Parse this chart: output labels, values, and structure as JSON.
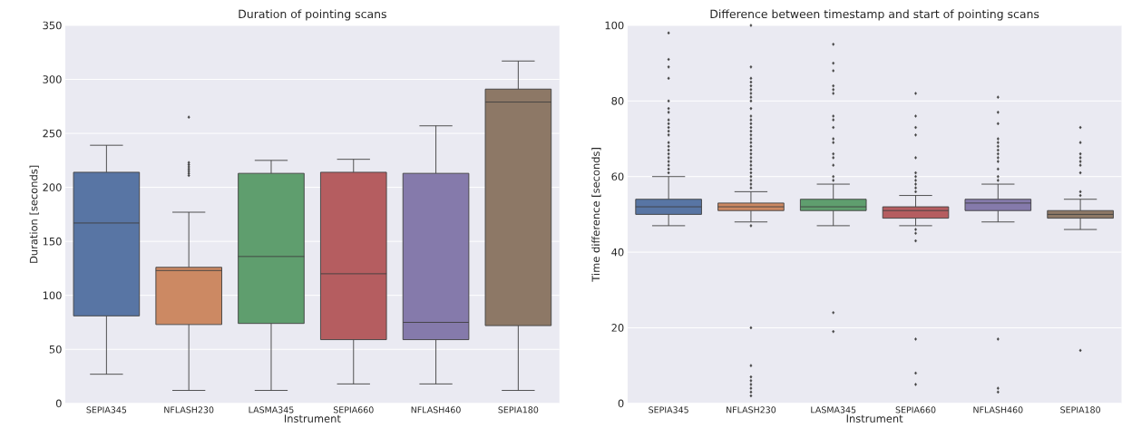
{
  "chart_data": [
    {
      "type": "box",
      "title": "Duration of pointing scans",
      "xlabel": "Instrument",
      "ylabel": "Duration [seconds]",
      "categories": [
        "SEPIA345",
        "NFLASH230",
        "LASMA345",
        "SEPIA660",
        "NFLASH460",
        "SEPIA180"
      ],
      "colors": [
        "#5875a4",
        "#cc8963",
        "#5f9e6e",
        "#b55d60",
        "#857aab",
        "#8d7866"
      ],
      "ylim": [
        0,
        350
      ],
      "yticks": [
        0,
        50,
        100,
        150,
        200,
        250,
        300,
        350
      ],
      "grid": "y",
      "boxes": [
        {
          "low": 27,
          "q1": 81,
          "median": 167,
          "q3": 214,
          "high": 239
        },
        {
          "low": 12,
          "q1": 73,
          "median": 123,
          "q3": 126,
          "high": 177,
          "outliers": [
            211,
            213,
            215,
            217,
            219,
            221,
            223,
            265
          ]
        },
        {
          "low": 12,
          "q1": 74,
          "median": 136,
          "q3": 213,
          "high": 225
        },
        {
          "low": 18,
          "q1": 59,
          "median": 120,
          "q3": 214,
          "high": 226
        },
        {
          "low": 18,
          "q1": 59,
          "median": 75,
          "q3": 213,
          "high": 257
        },
        {
          "low": 12,
          "q1": 72,
          "median": 279,
          "q3": 291,
          "high": 317
        }
      ]
    },
    {
      "type": "box",
      "title": "Difference between timestamp and start of pointing scans",
      "xlabel": "Instrument",
      "ylabel": "Time difference [seconds]",
      "categories": [
        "SEPIA345",
        "NFLASH230",
        "LASMA345",
        "SEPIA660",
        "NFLASH460",
        "SEPIA180"
      ],
      "colors": [
        "#5875a4",
        "#cc8963",
        "#5f9e6e",
        "#b55d60",
        "#857aab",
        "#8d7866"
      ],
      "ylim": [
        0,
        100
      ],
      "yticks": [
        0,
        20,
        40,
        60,
        80,
        100
      ],
      "grid": "y",
      "boxes": [
        {
          "low": 47,
          "q1": 50,
          "median": 52,
          "q3": 54,
          "high": 60,
          "outliers": [
            98,
            91,
            89,
            86,
            80,
            78,
            77,
            75,
            74,
            73,
            72,
            71,
            69,
            68,
            67,
            66,
            65,
            64,
            63,
            62,
            61
          ]
        },
        {
          "low": 48,
          "q1": 51,
          "median": 52,
          "q3": 53,
          "high": 56,
          "outliers": [
            100,
            89,
            86,
            85,
            84,
            83,
            82,
            81,
            80,
            78,
            76,
            75,
            74,
            73,
            72,
            71,
            70,
            69,
            68,
            67,
            66,
            65,
            64,
            63,
            62,
            61,
            60,
            59,
            58,
            57,
            47,
            20,
            10,
            7,
            6,
            5,
            4,
            3,
            2
          ]
        },
        {
          "low": 47,
          "q1": 51,
          "median": 52,
          "q3": 54,
          "high": 58,
          "outliers": [
            95,
            90,
            88,
            84,
            83,
            82,
            76,
            75,
            73,
            70,
            69,
            66,
            65,
            63,
            60,
            59,
            24,
            19
          ]
        },
        {
          "low": 47,
          "q1": 49,
          "median": 51,
          "q3": 52,
          "high": 55,
          "outliers": [
            82,
            76,
            73,
            71,
            65,
            61,
            60,
            59,
            58,
            57,
            56,
            46,
            45,
            43,
            17,
            8,
            5
          ]
        },
        {
          "low": 48,
          "q1": 51,
          "median": 53,
          "q3": 54,
          "high": 58,
          "outliers": [
            81,
            77,
            74,
            70,
            69,
            68,
            67,
            66,
            65,
            64,
            62,
            60,
            59,
            17,
            4,
            3
          ]
        },
        {
          "low": 46,
          "q1": 49,
          "median": 50,
          "q3": 51,
          "high": 54,
          "outliers": [
            73,
            69,
            66,
            65,
            64,
            63,
            61,
            56,
            55,
            14
          ]
        }
      ]
    }
  ]
}
